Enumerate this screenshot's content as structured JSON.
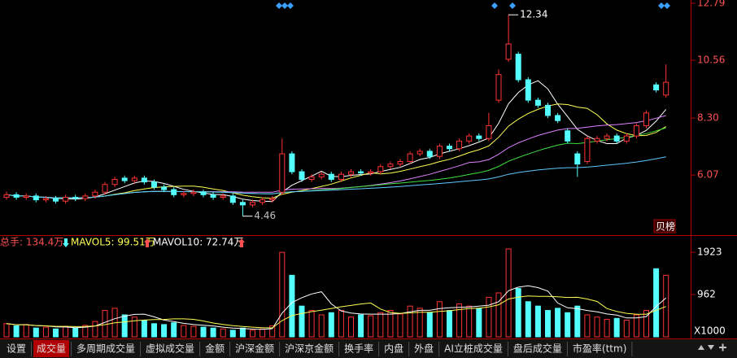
{
  "chart_data": {
    "type": "candlestick",
    "ylim": [
      3.75,
      12.92
    ],
    "yticks": [
      12.79,
      10.56,
      {
        "value": 8.3,
        "label": "8.30"
      },
      6.07
    ],
    "open": [
      5.2,
      5.3,
      5.2,
      5.25,
      5.1,
      5.15,
      5.05,
      5.2,
      5.15,
      5.25,
      5.4,
      5.7,
      5.95,
      5.85,
      5.95,
      5.8,
      5.6,
      5.5,
      5.3,
      5.35,
      5.4,
      5.3,
      5.2,
      5.25,
      5.0,
      4.9,
      5.0,
      5.1,
      5.4,
      6.9,
      6.2,
      5.9,
      6.0,
      6.1,
      5.9,
      6.1,
      6.2,
      6.15,
      6.2,
      6.4,
      6.5,
      6.6,
      6.9,
      7.0,
      6.8,
      7.2,
      7.1,
      7.4,
      7.6,
      7.5,
      9.0,
      10.6,
      10.8,
      9.8,
      9.0,
      8.8,
      8.4,
      7.8,
      6.9,
      6.6,
      7.4,
      7.5,
      7.6,
      7.4,
      7.6,
      8.0,
      9.6,
      9.2
    ],
    "high": [
      5.42,
      5.4,
      5.35,
      5.35,
      5.25,
      5.25,
      5.3,
      5.3,
      5.35,
      5.5,
      5.8,
      6.0,
      6.05,
      6.05,
      6.05,
      5.9,
      5.7,
      5.6,
      5.45,
      5.5,
      5.5,
      5.4,
      5.35,
      5.35,
      5.1,
      5.1,
      5.2,
      5.25,
      7.5,
      7.0,
      6.3,
      6.1,
      6.2,
      6.2,
      6.2,
      6.3,
      6.3,
      6.3,
      6.5,
      6.6,
      6.7,
      7.0,
      7.1,
      7.1,
      7.3,
      7.3,
      7.5,
      7.7,
      7.7,
      8.5,
      10.2,
      12.34,
      10.9,
      9.9,
      9.1,
      8.9,
      8.5,
      7.9,
      7.0,
      7.6,
      7.6,
      7.7,
      7.7,
      7.7,
      8.1,
      8.6,
      9.7,
      10.4
    ],
    "low": [
      5.1,
      5.1,
      5.1,
      5.0,
      5.0,
      4.95,
      4.95,
      5.05,
      5.05,
      5.15,
      5.3,
      5.6,
      5.75,
      5.75,
      5.7,
      5.5,
      5.4,
      5.2,
      5.2,
      5.25,
      5.2,
      5.1,
      5.1,
      4.9,
      4.46,
      4.8,
      4.9,
      5.0,
      5.3,
      6.1,
      5.8,
      5.8,
      5.9,
      5.8,
      5.8,
      6.0,
      6.05,
      6.05,
      6.1,
      6.3,
      6.4,
      6.5,
      6.8,
      6.7,
      6.7,
      7.0,
      7.0,
      7.3,
      7.4,
      7.4,
      8.9,
      10.5,
      9.7,
      8.9,
      8.7,
      8.3,
      8.1,
      7.3,
      6.0,
      6.5,
      7.3,
      7.4,
      7.3,
      7.3,
      7.5,
      7.9,
      9.3,
      9.1
    ],
    "close": [
      5.3,
      5.2,
      5.25,
      5.1,
      5.15,
      5.05,
      5.2,
      5.15,
      5.25,
      5.4,
      5.7,
      5.9,
      5.85,
      5.95,
      5.8,
      5.6,
      5.5,
      5.3,
      5.35,
      5.4,
      5.3,
      5.2,
      5.25,
      5.0,
      4.9,
      5.0,
      5.1,
      5.15,
      6.9,
      6.2,
      5.9,
      6.0,
      6.1,
      5.9,
      6.1,
      6.2,
      6.15,
      6.2,
      6.4,
      6.5,
      6.6,
      6.9,
      7.0,
      6.8,
      7.2,
      7.1,
      7.4,
      7.6,
      7.5,
      8.0,
      10.0,
      11.2,
      9.8,
      9.0,
      8.8,
      8.4,
      8.2,
      7.4,
      6.5,
      7.5,
      7.5,
      7.6,
      7.4,
      7.6,
      8.0,
      8.5,
      9.4,
      9.7
    ],
    "up_color": "#ff3232",
    "down_color": "#54ffff",
    "price_ma": [
      {
        "period": 5,
        "color": "#ffffff"
      },
      {
        "period": 10,
        "color": "#ffff54"
      },
      {
        "period": 20,
        "color": "#e080ff"
      },
      {
        "period": 30,
        "color": "#40e040"
      },
      {
        "period": 60,
        "color": "#5fc8ff"
      }
    ],
    "high_label": 12.34,
    "low_label": 4.46,
    "badge": "贝榜",
    "volume": [
      300,
      250,
      280,
      200,
      220,
      180,
      240,
      200,
      260,
      350,
      600,
      650,
      500,
      450,
      380,
      300,
      280,
      320,
      260,
      240,
      220,
      200,
      180,
      150,
      200,
      150,
      180,
      250,
      1923,
      1400,
      700,
      600,
      500,
      550,
      600,
      450,
      500,
      480,
      550,
      600,
      520,
      700,
      650,
      550,
      800,
      600,
      750,
      700,
      650,
      900,
      1000,
      2000,
      1100,
      800,
      700,
      600,
      650,
      550,
      700,
      500,
      450,
      400,
      420,
      380,
      500,
      600,
      1550,
      1400
    ],
    "vlim": [
      0,
      2110
    ],
    "vticks": [
      1923,
      962
    ],
    "vunit": "X1000",
    "volume_ma": [
      {
        "period": 5,
        "color": "#ffffff"
      },
      {
        "period": 10,
        "color": "#ffff54"
      }
    ],
    "header": {
      "total": "总手: 134.4万",
      "mavol5": "MAVOL5: 99.51万",
      "mavol10": "MAVOL10: 72.74万"
    },
    "tabs": [
      "设置",
      "成交量",
      "多周期成交量",
      "虚拟成交量",
      "金额",
      "沪深金额",
      "沪深京金额",
      "换手率",
      "内盘",
      "外盘",
      "AI立桩成交量",
      "盘后成交量",
      "市盈率(ttm)"
    ],
    "selected_tab": 1
  }
}
